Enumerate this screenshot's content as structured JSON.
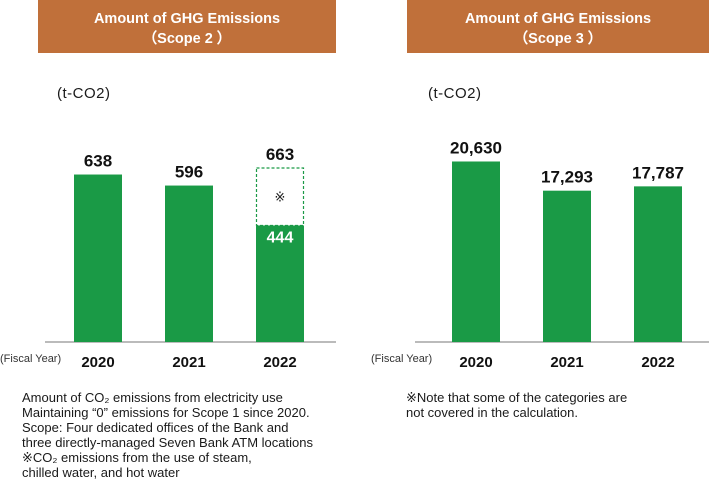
{
  "colors": {
    "header_bg": "#c0703a",
    "bar": "#1a9a46",
    "axis": "#777777"
  },
  "chart_data": [
    {
      "type": "bar",
      "title": "Amount of GHG Emissions",
      "subtitle": "（Scope 2 ）",
      "unit": "(t-CO2)",
      "xlabel": "(Fiscal Year)",
      "categories": [
        "2020",
        "2021",
        "2022"
      ],
      "values": [
        638,
        596,
        444
      ],
      "value_labels": [
        "638",
        "596",
        "444"
      ],
      "stacked_extra": {
        "category": "2022",
        "value": 219,
        "total": 663,
        "total_label": "663",
        "marker": "※"
      },
      "ylim": [
        0,
        800
      ],
      "grid": false
    },
    {
      "type": "bar",
      "title": "Amount of GHG Emissions",
      "subtitle": "（Scope 3 ）",
      "unit": "(t-CO2)",
      "xlabel": "(Fiscal Year)",
      "categories": [
        "2020",
        "2021",
        "2022"
      ],
      "values": [
        20630,
        17293,
        17787
      ],
      "value_labels": [
        "20,630",
        "17,293",
        "17,787"
      ],
      "ylim": [
        0,
        24000
      ],
      "grid": false
    }
  ],
  "notes_left": [
    "Amount of CO₂ emissions from electricity use",
    "Maintaining “0” emissions for Scope 1 since 2020.",
    "Scope: Four dedicated offices of the Bank and",
    "three directly-managed Seven Bank ATM locations",
    "※CO₂ emissions from the use of steam,",
    "   chilled water, and hot water"
  ],
  "notes_right": [
    "※Note that some of the categories are",
    "   not covered in the calculation."
  ]
}
